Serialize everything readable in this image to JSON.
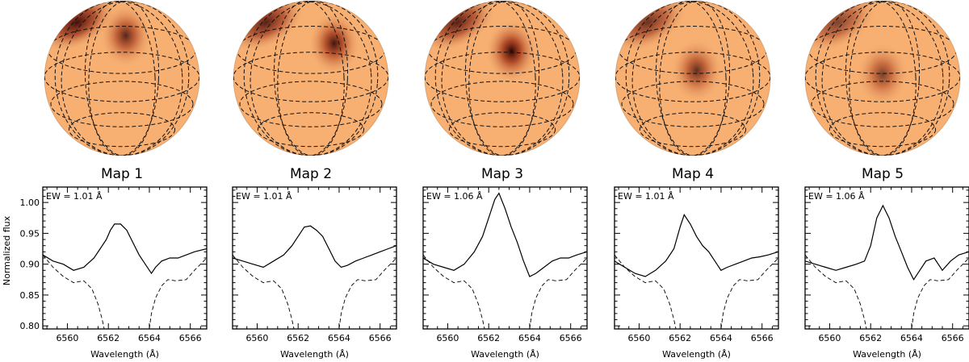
{
  "figure": {
    "ylabel": "Normalized flux",
    "xlabel": "Wavelength (Å)"
  },
  "chart_data": [
    {
      "type": "line",
      "map_label": "Map 1",
      "ew_label": "EW = 1.01 Å",
      "xlim": [
        6558.8,
        6566.8
      ],
      "ylim": [
        0.795,
        1.025
      ],
      "xticks": [
        6560,
        6562,
        6564,
        6566
      ],
      "yticks": [
        0.8,
        0.85,
        0.9,
        0.95,
        1.0
      ],
      "series": [
        {
          "style": "solid",
          "x": [
            6558.8,
            6559.3,
            6559.8,
            6560.3,
            6560.8,
            6561.3,
            6561.6,
            6561.9,
            6562.1,
            6562.3,
            6562.6,
            6562.9,
            6563.2,
            6563.5,
            6563.8,
            6564.1,
            6564.3,
            6564.6,
            6565.0,
            6565.4,
            6565.8,
            6566.2,
            6566.8
          ],
          "y": [
            0.915,
            0.905,
            0.9,
            0.89,
            0.895,
            0.91,
            0.925,
            0.94,
            0.955,
            0.965,
            0.965,
            0.955,
            0.935,
            0.915,
            0.9,
            0.885,
            0.895,
            0.905,
            0.91,
            0.91,
            0.915,
            0.92,
            0.925
          ]
        },
        {
          "style": "dashed",
          "x": [
            6558.8,
            6559.3,
            6559.8,
            6560.3,
            6560.8,
            6561.2,
            6561.5,
            6561.7,
            6561.8
          ],
          "y": [
            0.915,
            0.895,
            0.88,
            0.87,
            0.873,
            0.86,
            0.835,
            0.81,
            0.795
          ]
        },
        {
          "style": "dashed",
          "x": [
            6564.0,
            6564.1,
            6564.3,
            6564.6,
            6564.9,
            6565.3,
            6565.8,
            6566.2,
            6566.8
          ],
          "y": [
            0.795,
            0.82,
            0.845,
            0.865,
            0.875,
            0.873,
            0.875,
            0.89,
            0.91
          ]
        }
      ]
    },
    {
      "type": "line",
      "map_label": "Map 2",
      "ew_label": "EW = 1.01 Å",
      "xlim": [
        6558.8,
        6566.8
      ],
      "ylim": [
        0.795,
        1.025
      ],
      "xticks": [
        6560,
        6562,
        6564,
        6566
      ],
      "yticks": [
        0.8,
        0.85,
        0.9,
        0.95,
        1.0
      ],
      "series": [
        {
          "style": "solid",
          "x": [
            6558.8,
            6559.3,
            6559.8,
            6560.3,
            6560.8,
            6561.3,
            6561.7,
            6562.0,
            6562.3,
            6562.6,
            6562.9,
            6563.2,
            6563.5,
            6563.8,
            6564.1,
            6564.4,
            6564.8,
            6565.2,
            6565.6,
            6566.0,
            6566.4,
            6566.8
          ],
          "y": [
            0.91,
            0.905,
            0.9,
            0.895,
            0.905,
            0.915,
            0.93,
            0.945,
            0.96,
            0.962,
            0.955,
            0.945,
            0.925,
            0.905,
            0.895,
            0.898,
            0.905,
            0.91,
            0.915,
            0.92,
            0.925,
            0.93
          ]
        },
        {
          "style": "dashed",
          "x": [
            6558.8,
            6559.3,
            6559.8,
            6560.3,
            6560.8,
            6561.2,
            6561.5,
            6561.7,
            6561.8
          ],
          "y": [
            0.915,
            0.895,
            0.88,
            0.87,
            0.873,
            0.86,
            0.835,
            0.81,
            0.795
          ]
        },
        {
          "style": "dashed",
          "x": [
            6564.0,
            6564.1,
            6564.3,
            6564.6,
            6564.9,
            6565.3,
            6565.8,
            6566.2,
            6566.8
          ],
          "y": [
            0.795,
            0.82,
            0.845,
            0.865,
            0.875,
            0.873,
            0.875,
            0.89,
            0.91
          ]
        }
      ]
    },
    {
      "type": "line",
      "map_label": "Map 3",
      "ew_label": "EW = 1.06 Å",
      "xlim": [
        6558.8,
        6566.8
      ],
      "ylim": [
        0.795,
        1.025
      ],
      "xticks": [
        6560,
        6562,
        6564,
        6566
      ],
      "yticks": [
        0.8,
        0.85,
        0.9,
        0.95,
        1.0
      ],
      "series": [
        {
          "style": "solid",
          "x": [
            6558.8,
            6559.3,
            6559.8,
            6560.3,
            6560.8,
            6561.3,
            6561.7,
            6562.0,
            6562.3,
            6562.5,
            6562.8,
            6563.1,
            6563.4,
            6563.7,
            6564.0,
            6564.3,
            6564.7,
            6565.1,
            6565.5,
            6565.9,
            6566.3,
            6566.8
          ],
          "y": [
            0.91,
            0.9,
            0.895,
            0.89,
            0.9,
            0.92,
            0.945,
            0.975,
            1.005,
            1.015,
            0.99,
            0.96,
            0.935,
            0.905,
            0.88,
            0.885,
            0.895,
            0.905,
            0.91,
            0.91,
            0.915,
            0.92
          ]
        },
        {
          "style": "dashed",
          "x": [
            6558.8,
            6559.3,
            6559.8,
            6560.3,
            6560.8,
            6561.2,
            6561.5,
            6561.7,
            6561.8
          ],
          "y": [
            0.915,
            0.895,
            0.88,
            0.87,
            0.873,
            0.86,
            0.835,
            0.81,
            0.795
          ]
        },
        {
          "style": "dashed",
          "x": [
            6564.0,
            6564.1,
            6564.3,
            6564.6,
            6564.9,
            6565.3,
            6565.8,
            6566.2,
            6566.8
          ],
          "y": [
            0.795,
            0.82,
            0.845,
            0.865,
            0.875,
            0.873,
            0.875,
            0.89,
            0.91
          ]
        }
      ]
    },
    {
      "type": "line",
      "map_label": "Map 4",
      "ew_label": "EW = 1.01 Å",
      "xlim": [
        6558.8,
        6566.8
      ],
      "ylim": [
        0.795,
        1.025
      ],
      "xticks": [
        6560,
        6562,
        6564,
        6566
      ],
      "yticks": [
        0.8,
        0.85,
        0.9,
        0.95,
        1.0
      ],
      "series": [
        {
          "style": "solid",
          "x": [
            6558.8,
            6559.3,
            6559.8,
            6560.3,
            6560.8,
            6561.3,
            6561.7,
            6562.0,
            6562.2,
            6562.5,
            6562.8,
            6563.1,
            6563.4,
            6563.7,
            6564.0,
            6564.3,
            6564.7,
            6565.1,
            6565.5,
            6565.9,
            6566.3,
            6566.8
          ],
          "y": [
            0.905,
            0.895,
            0.885,
            0.88,
            0.89,
            0.905,
            0.925,
            0.96,
            0.98,
            0.965,
            0.945,
            0.93,
            0.92,
            0.905,
            0.89,
            0.895,
            0.9,
            0.905,
            0.91,
            0.912,
            0.915,
            0.92
          ]
        },
        {
          "style": "dashed",
          "x": [
            6558.8,
            6559.3,
            6559.8,
            6560.3,
            6560.8,
            6561.2,
            6561.5,
            6561.7,
            6561.8
          ],
          "y": [
            0.915,
            0.895,
            0.88,
            0.87,
            0.873,
            0.86,
            0.835,
            0.81,
            0.795
          ]
        },
        {
          "style": "dashed",
          "x": [
            6564.0,
            6564.1,
            6564.3,
            6564.6,
            6564.9,
            6565.3,
            6565.8,
            6566.2,
            6566.8
          ],
          "y": [
            0.795,
            0.82,
            0.845,
            0.865,
            0.875,
            0.873,
            0.875,
            0.89,
            0.91
          ]
        }
      ]
    },
    {
      "type": "line",
      "map_label": "Map 5",
      "ew_label": "EW = 1.06 Å",
      "xlim": [
        6558.8,
        6566.8
      ],
      "ylim": [
        0.795,
        1.025
      ],
      "xticks": [
        6560,
        6562,
        6564,
        6566
      ],
      "yticks": [
        0.8,
        0.85,
        0.9,
        0.95,
        1.0
      ],
      "series": [
        {
          "style": "solid",
          "x": [
            6558.8,
            6559.3,
            6559.8,
            6560.3,
            6560.8,
            6561.3,
            6561.7,
            6562.0,
            6562.3,
            6562.6,
            6562.9,
            6563.2,
            6563.5,
            6563.8,
            6564.1,
            6564.4,
            6564.7,
            6565.1,
            6565.5,
            6565.9,
            6566.3,
            6566.8
          ],
          "y": [
            0.905,
            0.9,
            0.895,
            0.89,
            0.895,
            0.9,
            0.905,
            0.93,
            0.975,
            0.995,
            0.975,
            0.945,
            0.92,
            0.895,
            0.875,
            0.89,
            0.905,
            0.91,
            0.89,
            0.905,
            0.915,
            0.92
          ]
        },
        {
          "style": "dashed",
          "x": [
            6558.8,
            6559.3,
            6559.8,
            6560.3,
            6560.8,
            6561.2,
            6561.5,
            6561.7,
            6561.8
          ],
          "y": [
            0.915,
            0.895,
            0.88,
            0.87,
            0.873,
            0.86,
            0.835,
            0.81,
            0.795
          ]
        },
        {
          "style": "dashed",
          "x": [
            6564.0,
            6564.1,
            6564.3,
            6564.6,
            6564.9,
            6565.3,
            6565.8,
            6566.2,
            6566.8
          ],
          "y": [
            0.795,
            0.82,
            0.845,
            0.865,
            0.875,
            0.873,
            0.875,
            0.89,
            0.91
          ]
        }
      ]
    }
  ],
  "spot_maps": [
    {
      "base_color": "#f7b072",
      "polar_cap": 0.95,
      "spot": {
        "lon": 0.05,
        "lat": 0.55,
        "strength": 0.8
      }
    },
    {
      "base_color": "#f7b072",
      "polar_cap": 0.85,
      "spot": {
        "lon": 0.3,
        "lat": 0.45,
        "strength": 0.9
      }
    },
    {
      "base_color": "#f7b072",
      "polar_cap": 0.85,
      "spot": {
        "lon": 0.12,
        "lat": 0.35,
        "strength": 1.0
      }
    },
    {
      "base_color": "#f7b072",
      "polar_cap": 0.75,
      "spot": {
        "lon": 0.05,
        "lat": 0.1,
        "strength": 0.75
      }
    },
    {
      "base_color": "#f7b072",
      "polar_cap": 0.65,
      "spot": {
        "lon": 0.0,
        "lat": 0.05,
        "strength": 0.65
      }
    }
  ]
}
